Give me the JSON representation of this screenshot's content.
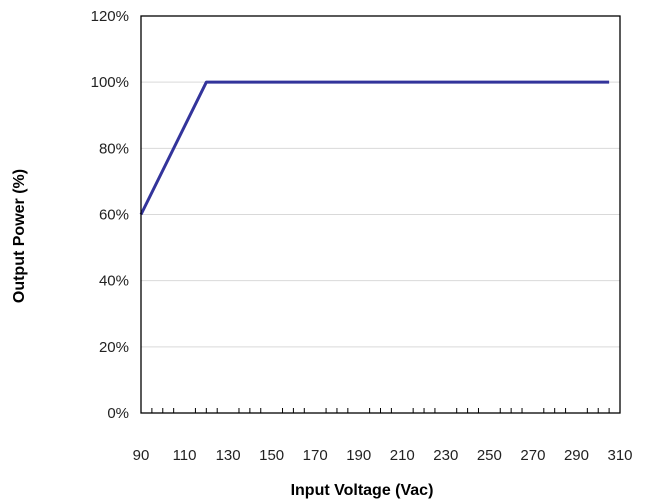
{
  "chart_data": {
    "type": "line",
    "title": "",
    "xlabel": "Input Voltage (Vac)",
    "ylabel": "Output Power (%)",
    "xlim": [
      90,
      310
    ],
    "ylim": [
      0,
      120
    ],
    "x_ticks": [
      90,
      110,
      130,
      150,
      170,
      190,
      210,
      230,
      250,
      270,
      290,
      310
    ],
    "x_tick_labels": [
      "90",
      "110",
      "130",
      "150",
      "170",
      "190",
      "210",
      "230",
      "250",
      "270",
      "290",
      "310"
    ],
    "y_ticks": [
      0,
      20,
      40,
      60,
      80,
      100,
      120
    ],
    "y_tick_labels": [
      "0%",
      "20%",
      "40%",
      "60%",
      "80%",
      "100%",
      "120%"
    ],
    "x_minor_step": 5,
    "grid": {
      "horizontal": true,
      "vertical": false
    },
    "legend": "none",
    "series": [
      {
        "color": "#33349b",
        "x": [
          90,
          120,
          305
        ],
        "y": [
          60,
          100,
          100
        ]
      }
    ]
  }
}
